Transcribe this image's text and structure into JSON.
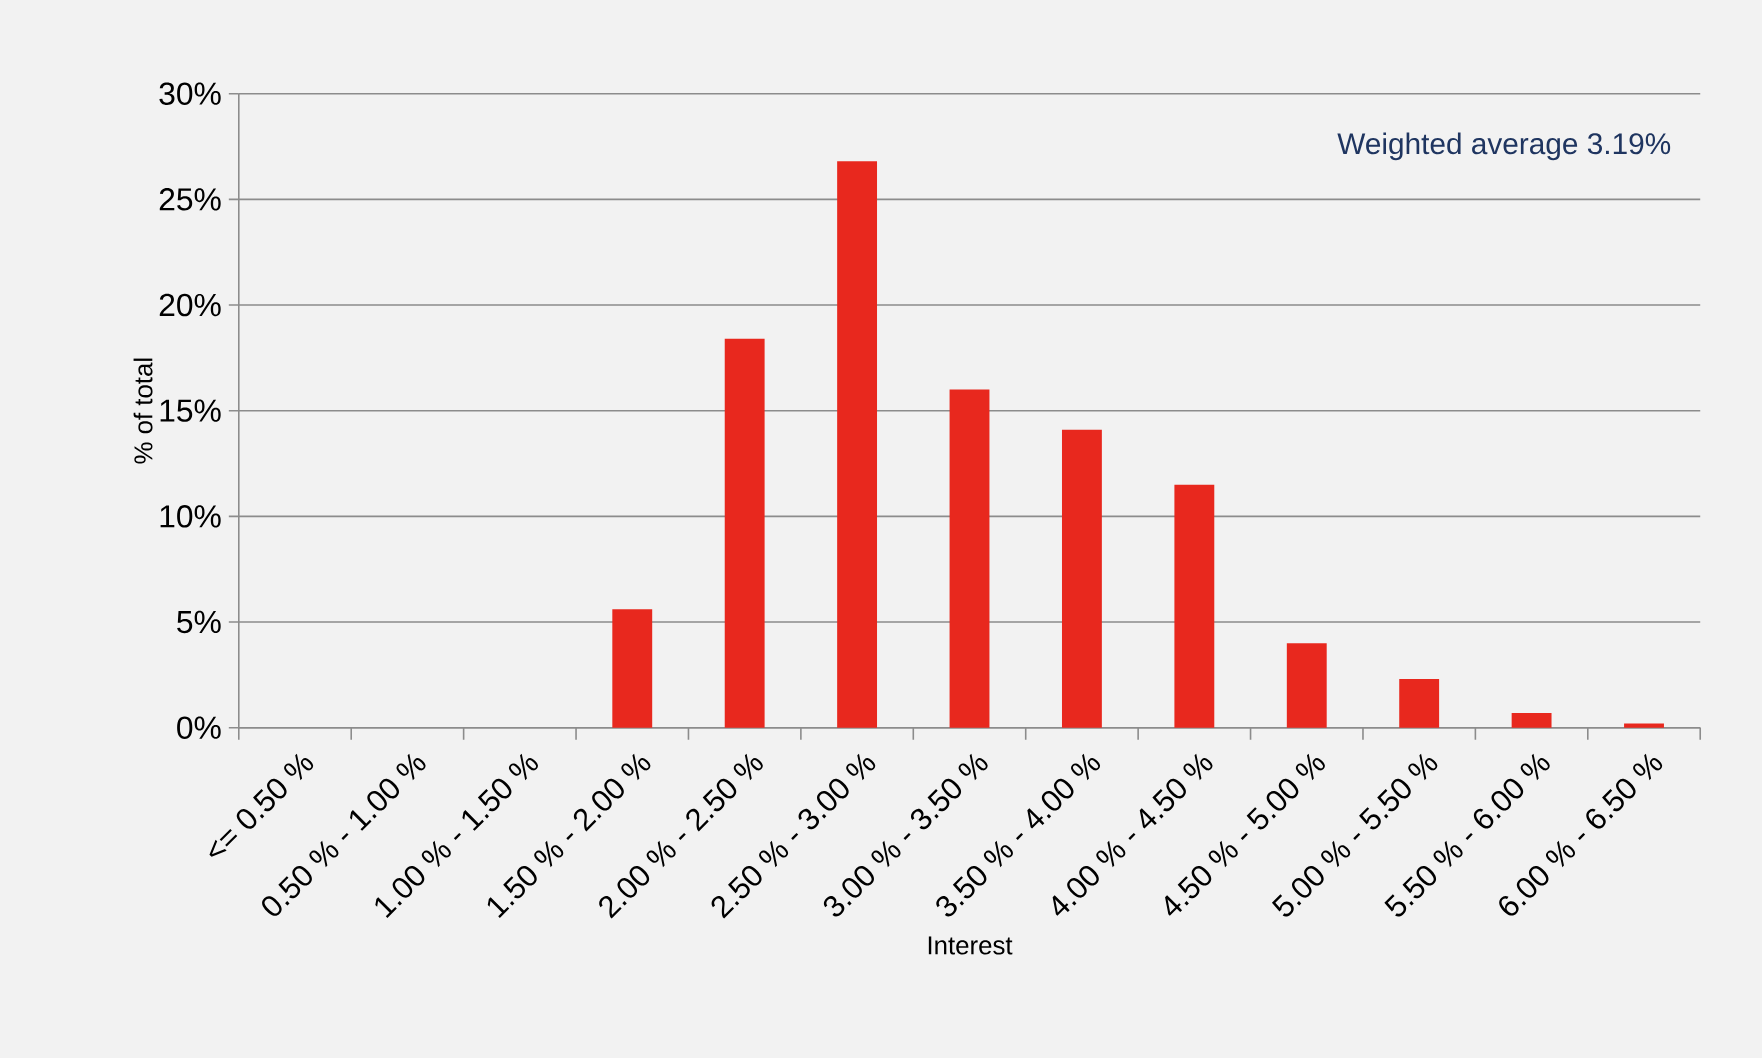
{
  "chart_data": {
    "type": "bar",
    "xlabel": "Interest",
    "ylabel": "% of total",
    "categories": [
      "<= 0.50 %",
      "0.50 % - 1.00 %",
      "1.00 % - 1.50 %",
      "1.50 % - 2.00 %",
      "2.00 % - 2.50 %",
      "2.50 % - 3.00 %",
      "3.00 % - 3.50 %",
      "3.50 % - 4.00 %",
      "4.00 % - 4.50 %",
      "4.50 % - 5.00 %",
      "5.00 % - 5.50 %",
      "5.50 % - 6.00 %",
      "6.00 % - 6.50 %"
    ],
    "values": [
      0,
      0,
      0,
      5.6,
      18.4,
      26.8,
      16.0,
      14.1,
      11.5,
      4.0,
      2.3,
      0.7,
      0.2
    ],
    "color": "#e8281e",
    "ylim": [
      0,
      30
    ],
    "yticks": [
      {
        "value": 0,
        "label": "0%"
      },
      {
        "value": 5,
        "label": "5%"
      },
      {
        "value": 10,
        "label": "10%"
      },
      {
        "value": 15,
        "label": "15%"
      },
      {
        "value": 20,
        "label": "20%"
      },
      {
        "value": 25,
        "label": "25%"
      },
      {
        "value": 30,
        "label": "30%"
      }
    ],
    "grid": "y",
    "annotations": [
      "Weighted average 3.19%"
    ]
  }
}
